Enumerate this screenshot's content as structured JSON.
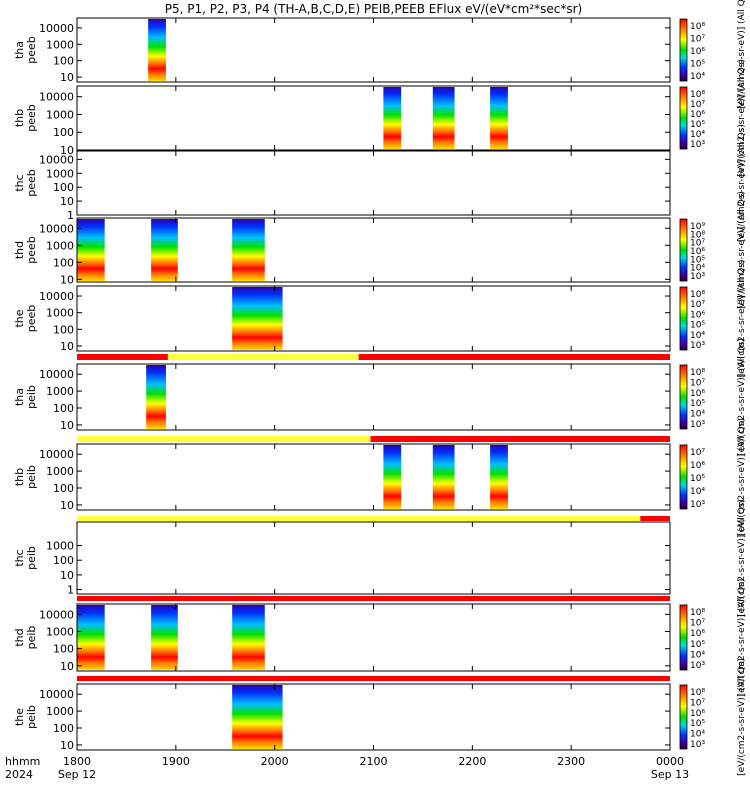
{
  "chart_data": {
    "type": "heatmap",
    "title": "P5, P1, P2, P3, P4 (TH-A,B,C,D,E) PEIB,PEEB EFlux eV/(eV*cm²*sec*sr)",
    "time_axis": {
      "range": [
        "1800",
        "0000"
      ],
      "tick_labels": [
        "1800",
        "1900",
        "2000",
        "2100",
        "2200",
        "2300",
        "0000"
      ],
      "tick_values_hours": [
        18,
        19,
        20,
        21,
        22,
        23,
        24
      ],
      "unit_label": "hhmm",
      "year_label": "2024",
      "start_date": "Sep 12",
      "end_date": "Sep 13"
    },
    "y_scale": "log",
    "grid": false,
    "colormap": "rainbow",
    "colors": {
      "flag_red": "#ff0000",
      "flag_yellow": "#ffff33",
      "background": "#ffffff",
      "axis": "#000000"
    },
    "panels": [
      {
        "ylabel": "tha\npeeb",
        "ylim": [
          5,
          40000
        ],
        "yticks": [
          "10000",
          "1000",
          "100",
          "10"
        ],
        "colorbar": {
          "label": "[eV/(cm2-s-sr-eV)] (All Qs)",
          "ticks": [
            "10⁸",
            "10⁷",
            "10⁶",
            "10⁵",
            "10⁴"
          ]
        },
        "data_intervals_hours": [
          [
            18.72,
            18.9
          ]
        ]
      },
      {
        "ylabel": "thb\npeeb",
        "ylim": [
          10,
          40000
        ],
        "yticks": [
          "10000",
          "1000",
          "100",
          "10"
        ],
        "colorbar": {
          "label": "[eV/(cm2-s-sr-eV)] (All Qs)",
          "ticks": [
            "10⁸",
            "10⁷",
            "10⁶",
            "10⁵",
            "10⁴",
            "10³"
          ]
        },
        "data_intervals_hours": [
          [
            21.1,
            21.28
          ],
          [
            21.6,
            21.82
          ],
          [
            22.18,
            22.36
          ]
        ]
      },
      {
        "ylabel": "thc\npeeb",
        "ylim": [
          1,
          40000
        ],
        "yticks": [
          "10000",
          "1000",
          "100",
          "10",
          "1"
        ],
        "colorbar": {
          "label": "[eV/(cm2-s-sr-eV)] (All Qs)",
          "ticks": []
        },
        "data_intervals_hours": []
      },
      {
        "ylabel": "thd\npeeb",
        "ylim": [
          7,
          40000
        ],
        "yticks": [
          "10000",
          "1000",
          "100",
          "10"
        ],
        "colorbar": {
          "label": "[eV/(cm2-s-sr-eV)] (All Qs)",
          "ticks": [
            "10⁹",
            "10⁸",
            "10⁷",
            "10⁶",
            "10⁵",
            "10⁴",
            "10³"
          ]
        },
        "data_intervals_hours": [
          [
            18.0,
            18.28
          ],
          [
            18.75,
            19.02
          ],
          [
            19.57,
            19.9
          ]
        ]
      },
      {
        "ylabel": "the\npeeb",
        "ylim": [
          5,
          40000
        ],
        "yticks": [
          "10000",
          "1000",
          "100",
          "10"
        ],
        "colorbar": {
          "label": "[eV/(cm2-s-sr-eV)] (All Qs)",
          "ticks": [
            "10⁸",
            "10⁷",
            "10⁶",
            "10⁵",
            "10⁴",
            "10³"
          ]
        },
        "data_intervals_hours": [
          [
            19.57,
            20.08
          ]
        ]
      },
      {
        "ylabel": "tha\npeib",
        "ylim": [
          5,
          40000
        ],
        "yticks": [
          "10000",
          "1000",
          "100",
          "10"
        ],
        "colorbar": {
          "label": "[eV/(cm2-s-sr-eV)] (All Qs)",
          "ticks": [
            "10⁸",
            "10⁷",
            "10⁶",
            "10⁵",
            "10⁴",
            "10³"
          ]
        },
        "flag_bar": [
          [
            "red",
            18.0,
            18.92
          ],
          [
            "yellow",
            18.92,
            20.85
          ],
          [
            "red",
            20.85,
            24.0
          ]
        ],
        "data_intervals_hours": [
          [
            18.7,
            18.9
          ]
        ]
      },
      {
        "ylabel": "thb\npeib",
        "ylim": [
          5,
          40000
        ],
        "yticks": [
          "10000",
          "1000",
          "100",
          "10"
        ],
        "colorbar": {
          "label": "[eV/(cm2-s-sr-eV)] (All Qs)",
          "ticks": [
            "10⁷",
            "10⁶",
            "10⁵",
            "10⁴",
            "10³"
          ]
        },
        "flag_bar": [
          [
            "yellow",
            18.0,
            20.97
          ],
          [
            "red",
            20.97,
            24.0
          ]
        ],
        "data_intervals_hours": [
          [
            21.1,
            21.28
          ],
          [
            21.6,
            21.82
          ],
          [
            22.18,
            22.36
          ]
        ]
      },
      {
        "ylabel": "thc\npeib",
        "ylim": [
          0.5,
          40000
        ],
        "yticks": [
          "1000",
          "100",
          "10",
          "1"
        ],
        "colorbar": {
          "label": "[eV/(cm2-s-sr-eV)] (All Qs)",
          "ticks": []
        },
        "flag_bar": [
          [
            "yellow",
            18.0,
            23.7
          ],
          [
            "red",
            23.7,
            24.0
          ]
        ],
        "data_intervals_hours": []
      },
      {
        "ylabel": "thd\npeib",
        "ylim": [
          5,
          40000
        ],
        "yticks": [
          "10000",
          "1000",
          "100",
          "10"
        ],
        "colorbar": {
          "label": "[eV/(cm2-s-sr-eV)] (All Qs)",
          "ticks": [
            "10⁸",
            "10⁷",
            "10⁶",
            "10⁵",
            "10⁴",
            "10³"
          ]
        },
        "flag_bar": [
          [
            "red",
            18.0,
            24.0
          ]
        ],
        "data_intervals_hours": [
          [
            18.0,
            18.28
          ],
          [
            18.75,
            19.02
          ],
          [
            19.57,
            19.9
          ]
        ]
      },
      {
        "ylabel": "the\npeib",
        "ylim": [
          5,
          40000
        ],
        "yticks": [
          "10000",
          "1000",
          "100",
          "10"
        ],
        "colorbar": {
          "label": "[eV/(cm2-s-sr-eV)] (All Qs)",
          "ticks": [
            "10⁸",
            "10⁷",
            "10⁶",
            "10⁵",
            "10⁴",
            "10³"
          ]
        },
        "flag_bar": [
          [
            "red",
            18.0,
            24.0
          ]
        ],
        "data_intervals_hours": [
          [
            19.57,
            20.08
          ]
        ]
      }
    ]
  }
}
